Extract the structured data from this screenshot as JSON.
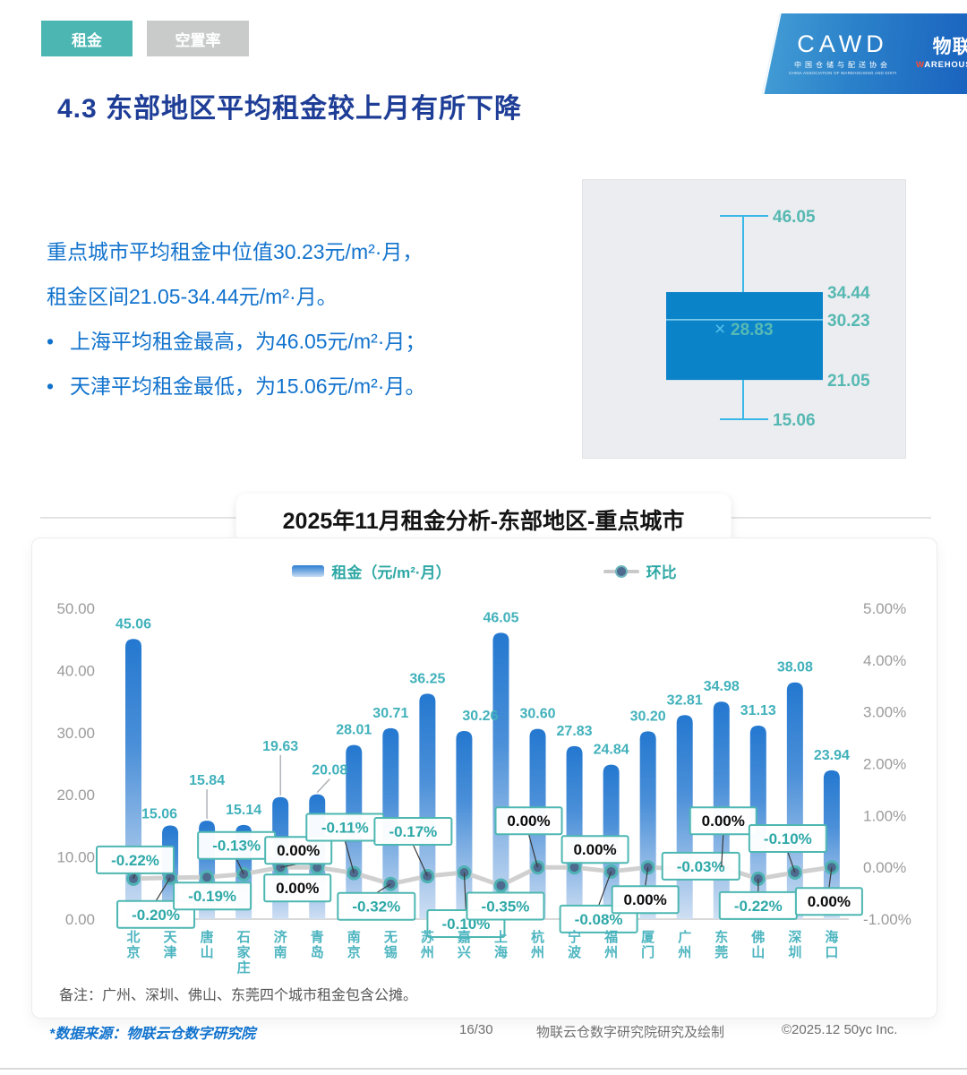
{
  "header": {
    "tabs": [
      {
        "label": "租金",
        "active": true
      },
      {
        "label": "空置率",
        "active": false
      }
    ],
    "logo": {
      "cawd": "CAWD",
      "cawd_cn": "中国仓储与配送协会",
      "cawd_en": "CHINA ASSOCIATION OF WAREHOUSING AND DISTRIBUTION",
      "cloud_cn": "物联云仓",
      "cloud_en": "WAREHOUSE IN CLOUD"
    },
    "title": "4.3 东部地区平均租金较上月有所下降"
  },
  "summary": {
    "lines": [
      "重点城市平均租金中位值30.23元/m²·月，",
      "租金区间21.05-34.44元/m²·月。"
    ],
    "bullets": [
      "上海平均租金最高，为46.05元/m²·月；",
      "天津平均租金最低，为15.06元/m²·月。"
    ]
  },
  "boxplot": {
    "max": 46.05,
    "q3": 34.44,
    "median": 30.23,
    "mean": 28.83,
    "q1": 21.05,
    "min": 15.06,
    "mean_marker": "×"
  },
  "chart_data": {
    "type": "bar",
    "title": "2025年11月租金分析-东部地区-重点城市",
    "categories": [
      "北京",
      "天津",
      "唐山",
      "石家庄",
      "济南",
      "青岛",
      "南京",
      "无锡",
      "苏州",
      "嘉兴",
      "上海",
      "杭州",
      "宁波",
      "福州",
      "厦门",
      "广州",
      "东莞",
      "佛山",
      "深圳",
      "海口"
    ],
    "series": [
      {
        "name": "租金（元/m²·月）",
        "type": "bar",
        "values": [
          45.06,
          15.06,
          15.84,
          15.14,
          19.63,
          20.08,
          28.01,
          30.71,
          36.25,
          30.26,
          46.05,
          30.6,
          27.83,
          24.84,
          30.2,
          32.81,
          34.98,
          31.13,
          38.08,
          23.94
        ]
      },
      {
        "name": "环比",
        "type": "line",
        "values": [
          -0.22,
          -0.2,
          -0.19,
          -0.13,
          0,
          0,
          -0.11,
          -0.32,
          -0.17,
          -0.1,
          -0.35,
          0,
          0,
          -0.08,
          0,
          -0.03,
          0,
          -0.22,
          -0.1,
          0
        ],
        "labels": [
          "-0.22%",
          "-0.20%",
          "-0.19%",
          "-0.13%",
          "0.00%",
          "0.00%",
          "-0.11%",
          "-0.32%",
          "-0.17%",
          "-0.10%",
          "-0.35%",
          "0.00%",
          "0.00%",
          "-0.08%",
          "0.00%",
          "-0.03%",
          "0.00%",
          "-0.22%",
          "-0.10%",
          "0.00%"
        ]
      }
    ],
    "left_axis": {
      "ticks": [
        "0.00",
        "10.00",
        "20.00",
        "30.00",
        "40.00",
        "50.00"
      ],
      "range": [
        0,
        50
      ]
    },
    "right_axis": {
      "ticks": [
        "-1.00%",
        "0.00%",
        "1.00%",
        "2.00%",
        "3.00%",
        "4.00%",
        "5.00%"
      ],
      "range": [
        -1,
        5
      ]
    },
    "legend_position": "top",
    "grid": false
  },
  "note": "备注：广州、深圳、佛山、东莞四个城市租金包含公摊。",
  "footer": {
    "source": "*数据来源：物联云仓数字研究院",
    "page": "16/30",
    "credit": "物联云仓数字研究院研究及绘制",
    "copyright": "©2025.12 50yc Inc."
  },
  "colors": {
    "accent_teal": "#4cb6b2",
    "label_teal": "#41b1bb",
    "city_teal": "#4db5c0",
    "pct_teal": "#2fa8a8",
    "bar_top": "#2478d0",
    "bar_bottom": "#cfdff3",
    "box_blue": "#0b83c9",
    "whisker_blue": "#38b7e8",
    "line_gray": "#cdcdcd",
    "title_navy": "#1e3d96",
    "body_blue": "#1273cd"
  }
}
